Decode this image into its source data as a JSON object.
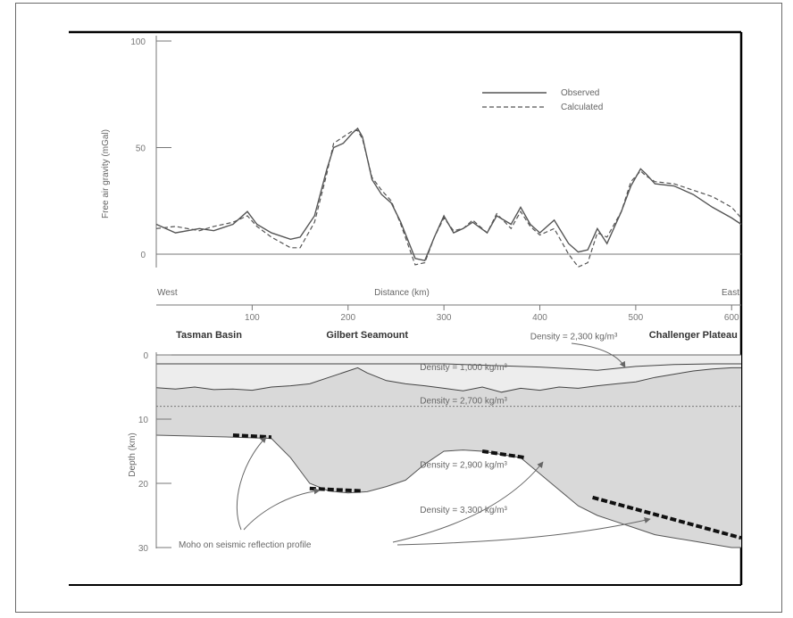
{
  "chart_data": [
    {
      "type": "line",
      "ylabel": "Free air gravity (mGal)",
      "xlabel": "Distance (km)",
      "x_left_label": "West",
      "x_right_label": "East",
      "ylim": [
        -10,
        100
      ],
      "xlim": [
        0,
        610
      ],
      "y_ticks": [
        "100",
        "50",
        "0"
      ],
      "y_tick_values": [
        100,
        50,
        0
      ],
      "x_ticks": [
        "100",
        "200",
        "300",
        "400",
        "500",
        "600"
      ],
      "x_tick_values": [
        100,
        200,
        300,
        400,
        500,
        600
      ],
      "legend_position": "top-right",
      "series": [
        {
          "name": "Observed",
          "style": "solid",
          "x": [
            0,
            20,
            45,
            60,
            80,
            95,
            105,
            120,
            140,
            150,
            165,
            178,
            185,
            195,
            205,
            210,
            215,
            225,
            235,
            245,
            255,
            270,
            280,
            290,
            300,
            310,
            320,
            330,
            345,
            355,
            370,
            380,
            390,
            400,
            415,
            430,
            440,
            450,
            460,
            470,
            485,
            495,
            505,
            510,
            520,
            540,
            560,
            580,
            600,
            610
          ],
          "y": [
            14,
            10,
            12,
            11,
            14,
            20,
            14,
            10,
            7,
            8,
            18,
            40,
            50,
            52,
            57,
            59,
            55,
            35,
            28,
            24,
            15,
            -2,
            -3,
            8,
            18,
            10,
            12,
            15,
            10,
            18,
            14,
            22,
            14,
            10,
            16,
            5,
            1,
            2,
            12,
            5,
            20,
            32,
            40,
            38,
            33,
            32,
            28,
            22,
            17,
            14
          ]
        },
        {
          "name": "Calculated",
          "style": "dashed",
          "x": [
            0,
            20,
            45,
            60,
            80,
            95,
            105,
            120,
            140,
            150,
            165,
            178,
            185,
            195,
            205,
            210,
            215,
            225,
            235,
            245,
            255,
            270,
            280,
            290,
            300,
            310,
            320,
            330,
            345,
            355,
            370,
            380,
            390,
            400,
            415,
            430,
            440,
            450,
            460,
            470,
            485,
            495,
            505,
            510,
            520,
            540,
            560,
            580,
            600,
            610
          ],
          "y": [
            12,
            13,
            11,
            13,
            15,
            18,
            13,
            8,
            3,
            3,
            15,
            38,
            52,
            55,
            58,
            58,
            54,
            36,
            30,
            25,
            14,
            -5,
            -4,
            8,
            17,
            11,
            12,
            16,
            10,
            19,
            12,
            20,
            13,
            9,
            12,
            0,
            -6,
            -4,
            10,
            8,
            20,
            34,
            39,
            37,
            34,
            33,
            30,
            27,
            22,
            17
          ]
        }
      ]
    },
    {
      "type": "area",
      "ylabel": "Depth (km)",
      "ylim": [
        30,
        0
      ],
      "xlim": [
        0,
        610
      ],
      "y_ticks": [
        "0",
        "10",
        "20",
        "30"
      ],
      "y_tick_values": [
        0,
        10,
        20,
        30
      ],
      "regions": [
        {
          "label": "Tasman Basin",
          "x": 55
        },
        {
          "label": "Gilbert Seamount",
          "x": 220
        },
        {
          "label": "Challenger Plateau",
          "x": 560
        }
      ],
      "layers": [
        {
          "label": "Density = 1,000 kg/m³",
          "x": 275,
          "depth": 1.8
        },
        {
          "label": "Density = 2,300 kg/m³",
          "x": 390,
          "depth": -3.0
        },
        {
          "label": "Density = 2,700 kg/m³",
          "x": 275,
          "depth": 7.0
        },
        {
          "label": "Density = 2,900 kg/m³",
          "x": 275,
          "depth": 17.0
        },
        {
          "label": "Density = 3,300 kg/m³",
          "x": 275,
          "depth": 24.0
        }
      ],
      "seafloor": {
        "x": [
          0,
          20,
          40,
          60,
          80,
          100,
          120,
          140,
          160,
          180,
          200,
          210,
          220,
          240,
          260,
          280,
          300,
          320,
          340,
          360,
          380,
          400,
          420,
          440,
          460,
          480,
          500,
          520,
          540,
          560,
          580,
          600,
          610
        ],
        "depth": [
          5.1,
          5.3,
          5.0,
          5.4,
          5.3,
          5.5,
          5.0,
          4.8,
          4.5,
          3.5,
          2.5,
          2.0,
          2.8,
          4.0,
          4.5,
          4.8,
          5.2,
          5.6,
          5.0,
          5.8,
          5.2,
          5.5,
          5.0,
          5.2,
          4.8,
          4.5,
          4.2,
          3.5,
          3.0,
          2.5,
          2.2,
          2.0,
          2.0
        ]
      },
      "sediment_base": {
        "x": [
          0,
          300,
          400,
          460,
          500,
          540,
          580,
          610
        ],
        "depth": [
          0,
          0,
          0.5,
          1.0,
          0.4,
          0.1,
          0,
          0
        ]
      },
      "layer_boundary_2700": {
        "depth": 8.0
      },
      "moho_model": {
        "x": [
          0,
          80,
          120,
          140,
          160,
          180,
          200,
          220,
          240,
          260,
          280,
          300,
          320,
          340,
          360,
          380,
          400,
          420,
          440,
          460,
          480,
          500,
          520,
          540,
          560,
          580,
          600,
          610
        ],
        "depth": [
          12.5,
          12.8,
          13.0,
          16.0,
          20.0,
          21.2,
          21.5,
          21.3,
          20.5,
          19.5,
          17.0,
          15.0,
          14.8,
          15.0,
          15.5,
          16.0,
          18.5,
          21.0,
          23.5,
          25.0,
          26.0,
          27.0,
          28.0,
          28.5,
          29.0,
          29.5,
          30.0,
          30.0
        ]
      },
      "moho_seismic": [
        {
          "x": [
            80,
            120
          ],
          "depth": [
            12.5,
            12.8
          ]
        },
        {
          "x": [
            160,
            215
          ],
          "depth": [
            20.8,
            21.2
          ]
        },
        {
          "x": [
            340,
            385
          ],
          "depth": [
            15.0,
            16.0
          ]
        },
        {
          "x": [
            455,
            610
          ],
          "depth": [
            22.2,
            28.5
          ]
        }
      ],
      "annotation": "Moho on seismic reflection profile"
    }
  ]
}
